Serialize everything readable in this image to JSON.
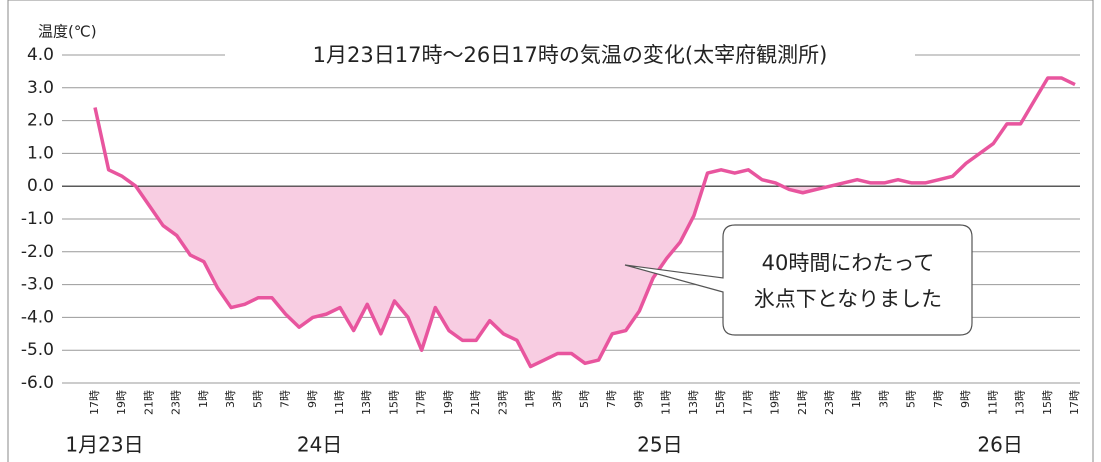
{
  "chart_data": {
    "type": "line",
    "title": "1月23日17時〜26日17時の気温の変化(太宰府観測所)",
    "y_label": "温度(℃)",
    "annotation": [
      "40時間にわたって",
      "氷点下となりました"
    ],
    "date_labels": [
      "1月23日",
      "24日",
      "25日",
      "26日"
    ],
    "categories": [
      "17時",
      null,
      "19時",
      null,
      "21時",
      null,
      "23時",
      null,
      "1時",
      null,
      "3時",
      null,
      "5時",
      null,
      "7時",
      null,
      "9時",
      null,
      "11時",
      null,
      "13時",
      null,
      "15時",
      null,
      "17時",
      null,
      "19時",
      null,
      "21時",
      null,
      "23時",
      null,
      "1時",
      null,
      "3時",
      null,
      "5時",
      null,
      "7時",
      null,
      "9時",
      null,
      "11時",
      null,
      "13時",
      null,
      "15時",
      null,
      "17時",
      null,
      "19時",
      null,
      "21時",
      null,
      "23時",
      null,
      "1時",
      null,
      "3時",
      null,
      "5時",
      null,
      "7時",
      null,
      "9時",
      null,
      "11時",
      null,
      "13時",
      null,
      "15時",
      null,
      "17時"
    ],
    "series": [
      {
        "name": "気温",
        "color": "#e8559e",
        "values": [
          2.4,
          0.5,
          0.3,
          0.0,
          -0.6,
          -1.2,
          -1.5,
          -2.1,
          -2.3,
          -3.1,
          -3.7,
          -3.6,
          -3.4,
          -3.4,
          -3.9,
          -4.3,
          -4.0,
          -3.9,
          -3.7,
          -4.4,
          -3.6,
          -4.5,
          -3.5,
          -4.0,
          -5.0,
          -3.7,
          -4.4,
          -4.7,
          -4.7,
          -4.1,
          -4.5,
          -4.7,
          -5.5,
          -5.3,
          -5.1,
          -5.1,
          -5.4,
          -5.3,
          -4.5,
          -4.4,
          -3.8,
          -2.8,
          -2.2,
          -1.7,
          -0.9,
          0.4,
          0.5,
          0.4,
          0.5,
          0.2,
          0.1,
          -0.1,
          -0.2,
          -0.1,
          0.0,
          0.1,
          0.2,
          0.1,
          0.1,
          0.2,
          0.1,
          0.1,
          0.2,
          0.3,
          0.7,
          1.0,
          1.3,
          1.9,
          1.9,
          2.6,
          3.3,
          3.3,
          3.1
        ]
      }
    ],
    "fill_below_zero_color": "#f8cde2",
    "ylim": [
      -6,
      4
    ],
    "yticks": [
      {
        "value": 4,
        "label": "4.0"
      },
      {
        "value": 3,
        "label": "3.0"
      },
      {
        "value": 2,
        "label": "2.0"
      },
      {
        "value": 1,
        "label": "1.0"
      },
      {
        "value": 0,
        "label": "0.0"
      },
      {
        "value": -1,
        "label": "-1.0"
      },
      {
        "value": -2,
        "label": "-2.0"
      },
      {
        "value": -3,
        "label": "-3.0"
      },
      {
        "value": -4,
        "label": "-4.0"
      },
      {
        "value": -5,
        "label": "-5.0"
      },
      {
        "value": -6,
        "label": "-6.0"
      }
    ],
    "grid": true
  }
}
